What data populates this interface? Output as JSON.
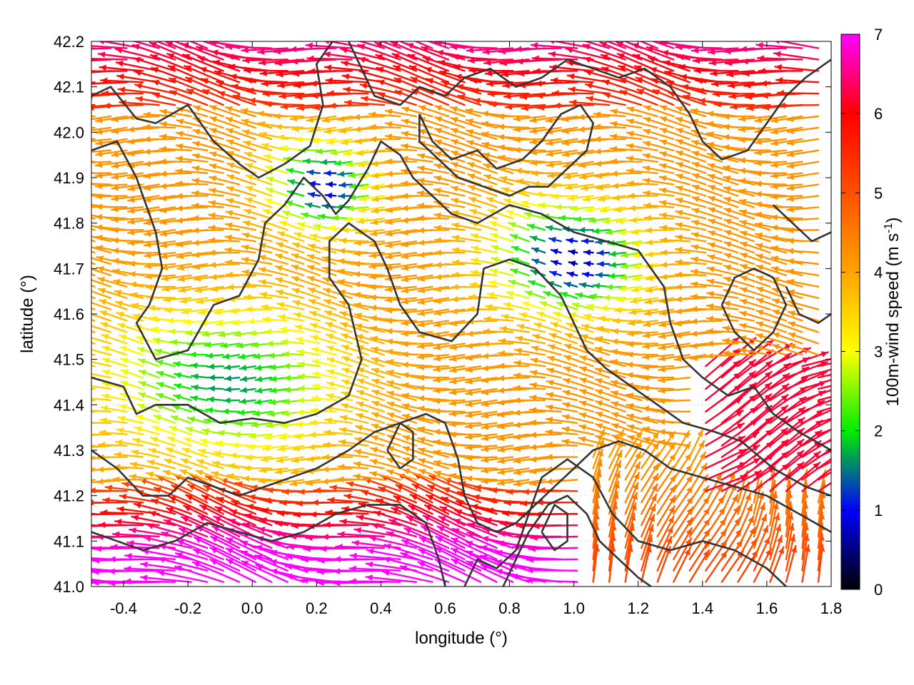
{
  "chart_data": {
    "type": "vector-field",
    "xlabel": "longitude (°)",
    "ylabel": "latitude (°)",
    "colorbar_label_main": "100m-wind speed (m s",
    "colorbar_label_exp": "-1",
    "colorbar_label_close": ")",
    "xlim": [
      -0.5,
      1.8
    ],
    "ylim": [
      41.0,
      42.2
    ],
    "x_ticks": [
      {
        "value": -0.4,
        "label": "-0.4"
      },
      {
        "value": -0.2,
        "label": "-0.2"
      },
      {
        "value": 0.0,
        "label": "0.0"
      },
      {
        "value": 0.2,
        "label": "0.2"
      },
      {
        "value": 0.4,
        "label": "0.4"
      },
      {
        "value": 0.6,
        "label": "0.6"
      },
      {
        "value": 0.8,
        "label": "0.8"
      },
      {
        "value": 1.0,
        "label": "1.0"
      },
      {
        "value": 1.2,
        "label": "1.2"
      },
      {
        "value": 1.4,
        "label": "1.4"
      },
      {
        "value": 1.6,
        "label": "1.6"
      },
      {
        "value": 1.8,
        "label": "1.8"
      }
    ],
    "y_ticks": [
      {
        "value": 41.0,
        "label": "41.0"
      },
      {
        "value": 41.1,
        "label": "41.1"
      },
      {
        "value": 41.2,
        "label": "41.2"
      },
      {
        "value": 41.3,
        "label": "41.3"
      },
      {
        "value": 41.4,
        "label": "41.4"
      },
      {
        "value": 41.5,
        "label": "41.5"
      },
      {
        "value": 41.6,
        "label": "41.6"
      },
      {
        "value": 41.7,
        "label": "41.7"
      },
      {
        "value": 41.8,
        "label": "41.8"
      },
      {
        "value": 41.9,
        "label": "41.9"
      },
      {
        "value": 42.0,
        "label": "42.0"
      },
      {
        "value": 42.1,
        "label": "42.1"
      },
      {
        "value": 42.2,
        "label": "42.2"
      }
    ],
    "colorbar_range": [
      0,
      7
    ],
    "colorbar_ticks": [
      {
        "value": 0,
        "label": "0"
      },
      {
        "value": 1,
        "label": "1"
      },
      {
        "value": 2,
        "label": "2"
      },
      {
        "value": 3,
        "label": "3"
      },
      {
        "value": 4,
        "label": "4"
      },
      {
        "value": 5,
        "label": "5"
      },
      {
        "value": 6,
        "label": "6"
      },
      {
        "value": 7,
        "label": "7"
      }
    ],
    "colormap": [
      {
        "value": 0,
        "color": "#000000"
      },
      {
        "value": 1,
        "color": "#0000ff"
      },
      {
        "value": 2,
        "color": "#00ee00"
      },
      {
        "value": 3,
        "color": "#ffff00"
      },
      {
        "value": 4,
        "color": "#ffa500"
      },
      {
        "value": 5,
        "color": "#ff5000"
      },
      {
        "value": 6,
        "color": "#ff0000"
      },
      {
        "value": 7,
        "color": "#ff00ff"
      }
    ],
    "grid": true,
    "contour_color": "#333333",
    "contours": [
      [
        [
          -0.5,
          42.08
        ],
        [
          -0.44,
          42.1
        ],
        [
          -0.36,
          42.03
        ],
        [
          -0.3,
          42.02
        ],
        [
          -0.2,
          42.06
        ],
        [
          -0.12,
          41.98
        ],
        [
          -0.04,
          41.93
        ],
        [
          0.02,
          41.9
        ],
        [
          0.1,
          41.93
        ],
        [
          0.18,
          41.97
        ],
        [
          0.22,
          42.06
        ],
        [
          0.2,
          42.15
        ],
        [
          0.25,
          42.2
        ]
      ],
      [
        [
          -0.5,
          41.96
        ],
        [
          -0.42,
          41.98
        ],
        [
          -0.36,
          41.9
        ],
        [
          -0.3,
          41.78
        ],
        [
          -0.28,
          41.7
        ],
        [
          -0.32,
          41.62
        ],
        [
          -0.36,
          41.58
        ],
        [
          -0.3,
          41.5
        ],
        [
          -0.2,
          41.52
        ],
        [
          -0.12,
          41.62
        ],
        [
          -0.04,
          41.64
        ],
        [
          0.02,
          41.72
        ],
        [
          0.04,
          41.8
        ],
        [
          0.1,
          41.84
        ],
        [
          0.16,
          41.9
        ],
        [
          0.22,
          41.86
        ],
        [
          0.26,
          41.82
        ],
        [
          0.3,
          41.85
        ],
        [
          0.36,
          41.92
        ],
        [
          0.4,
          41.98
        ],
        [
          0.46,
          41.95
        ],
        [
          0.5,
          41.9
        ],
        [
          0.56,
          41.86
        ],
        [
          0.62,
          41.82
        ],
        [
          0.7,
          41.8
        ],
        [
          0.8,
          41.84
        ],
        [
          0.9,
          41.82
        ],
        [
          1.0,
          41.78
        ],
        [
          1.1,
          41.76
        ],
        [
          1.2,
          41.74
        ],
        [
          1.28,
          41.66
        ],
        [
          1.3,
          41.58
        ],
        [
          1.34,
          41.5
        ],
        [
          1.4,
          41.46
        ],
        [
          1.48,
          41.42
        ],
        [
          1.56,
          41.44
        ],
        [
          1.62,
          41.38
        ],
        [
          1.7,
          41.34
        ],
        [
          1.8,
          41.3
        ]
      ],
      [
        [
          -0.5,
          41.46
        ],
        [
          -0.4,
          41.44
        ],
        [
          -0.36,
          41.38
        ],
        [
          -0.3,
          41.4
        ],
        [
          -0.2,
          41.4
        ],
        [
          -0.1,
          41.36
        ],
        [
          0.0,
          41.37
        ],
        [
          0.1,
          41.36
        ],
        [
          0.2,
          41.38
        ],
        [
          0.3,
          41.42
        ],
        [
          0.34,
          41.5
        ],
        [
          0.3,
          41.62
        ],
        [
          0.24,
          41.68
        ],
        [
          0.24,
          41.76
        ],
        [
          0.3,
          41.8
        ],
        [
          0.38,
          41.76
        ],
        [
          0.42,
          41.7
        ],
        [
          0.46,
          41.62
        ],
        [
          0.52,
          41.56
        ],
        [
          0.62,
          41.54
        ],
        [
          0.7,
          41.6
        ],
        [
          0.72,
          41.7
        ],
        [
          0.8,
          41.72
        ],
        [
          0.88,
          41.7
        ],
        [
          0.96,
          41.64
        ],
        [
          1.0,
          41.58
        ],
        [
          1.04,
          41.52
        ],
        [
          1.1,
          41.48
        ],
        [
          1.18,
          41.44
        ],
        [
          1.26,
          41.4
        ],
        [
          1.34,
          41.36
        ],
        [
          1.44,
          41.34
        ],
        [
          1.52,
          41.32
        ],
        [
          1.62,
          41.26
        ],
        [
          1.72,
          41.22
        ],
        [
          1.8,
          41.2
        ]
      ],
      [
        [
          -0.5,
          41.3
        ],
        [
          -0.42,
          41.26
        ],
        [
          -0.34,
          41.2
        ],
        [
          -0.26,
          41.2
        ],
        [
          -0.2,
          41.24
        ],
        [
          -0.12,
          41.22
        ],
        [
          -0.04,
          41.2
        ],
        [
          0.04,
          41.22
        ],
        [
          0.12,
          41.24
        ],
        [
          0.2,
          41.26
        ],
        [
          0.3,
          41.3
        ],
        [
          0.38,
          41.34
        ],
        [
          0.46,
          41.36
        ],
        [
          0.54,
          41.38
        ],
        [
          0.6,
          41.36
        ],
        [
          0.64,
          41.28
        ],
        [
          0.66,
          41.2
        ],
        [
          0.7,
          41.14
        ],
        [
          0.76,
          41.12
        ],
        [
          0.82,
          41.14
        ],
        [
          0.88,
          41.18
        ],
        [
          0.94,
          41.22
        ],
        [
          1.0,
          41.26
        ],
        [
          1.06,
          41.3
        ],
        [
          1.14,
          41.32
        ],
        [
          1.22,
          41.3
        ],
        [
          1.3,
          41.26
        ],
        [
          1.4,
          41.24
        ],
        [
          1.5,
          41.22
        ],
        [
          1.6,
          41.2
        ],
        [
          1.7,
          41.16
        ],
        [
          1.8,
          41.12
        ]
      ],
      [
        [
          -0.5,
          41.12
        ],
        [
          -0.42,
          41.1
        ],
        [
          -0.34,
          41.08
        ],
        [
          -0.24,
          41.1
        ],
        [
          -0.14,
          41.14
        ],
        [
          -0.04,
          41.12
        ],
        [
          0.06,
          41.1
        ],
        [
          0.16,
          41.12
        ],
        [
          0.26,
          41.16
        ],
        [
          0.36,
          41.18
        ],
        [
          0.46,
          41.18
        ],
        [
          0.54,
          41.14
        ],
        [
          0.58,
          41.06
        ],
        [
          0.6,
          41.0
        ]
      ],
      [
        [
          0.66,
          41.0
        ],
        [
          0.7,
          41.06
        ],
        [
          0.76,
          41.04
        ],
        [
          0.82,
          41.08
        ],
        [
          0.86,
          41.16
        ],
        [
          0.9,
          41.24
        ],
        [
          0.98,
          41.28
        ],
        [
          1.06,
          41.24
        ],
        [
          1.12,
          41.16
        ],
        [
          1.2,
          41.1
        ],
        [
          1.3,
          41.08
        ],
        [
          1.4,
          41.1
        ],
        [
          1.5,
          41.08
        ],
        [
          1.6,
          41.04
        ],
        [
          1.66,
          41.0
        ]
      ],
      [
        [
          0.78,
          41.0
        ],
        [
          0.82,
          41.06
        ],
        [
          0.86,
          41.12
        ],
        [
          0.92,
          41.18
        ],
        [
          0.98,
          41.2
        ],
        [
          1.04,
          41.16
        ],
        [
          1.08,
          41.1
        ],
        [
          1.14,
          41.06
        ],
        [
          1.2,
          41.02
        ],
        [
          1.24,
          41.0
        ]
      ],
      [
        [
          0.3,
          42.2
        ],
        [
          0.34,
          42.14
        ],
        [
          0.38,
          42.08
        ],
        [
          0.46,
          42.06
        ],
        [
          0.52,
          42.1
        ],
        [
          0.6,
          42.08
        ],
        [
          0.66,
          42.12
        ],
        [
          0.74,
          42.14
        ],
        [
          0.82,
          42.1
        ],
        [
          0.9,
          42.12
        ],
        [
          0.98,
          42.16
        ],
        [
          1.06,
          42.14
        ],
        [
          1.14,
          42.12
        ],
        [
          1.22,
          42.14
        ],
        [
          1.3,
          42.1
        ],
        [
          1.36,
          42.04
        ],
        [
          1.4,
          41.98
        ],
        [
          1.46,
          41.94
        ],
        [
          1.54,
          41.96
        ],
        [
          1.6,
          42.02
        ],
        [
          1.66,
          42.08
        ],
        [
          1.72,
          42.12
        ],
        [
          1.8,
          42.16
        ]
      ],
      [
        [
          0.52,
          42.04
        ],
        [
          0.56,
          41.98
        ],
        [
          0.62,
          41.94
        ],
        [
          0.7,
          41.96
        ],
        [
          0.76,
          41.92
        ],
        [
          0.84,
          41.94
        ],
        [
          0.9,
          41.98
        ],
        [
          0.96,
          42.04
        ],
        [
          1.02,
          42.06
        ],
        [
          1.06,
          42.02
        ],
        [
          1.04,
          41.96
        ],
        [
          0.98,
          41.92
        ],
        [
          0.92,
          41.88
        ],
        [
          0.86,
          41.88
        ],
        [
          0.8,
          41.86
        ],
        [
          0.72,
          41.88
        ],
        [
          0.64,
          41.9
        ],
        [
          0.58,
          41.94
        ],
        [
          0.52,
          41.98
        ],
        [
          0.52,
          42.04
        ]
      ],
      [
        [
          1.46,
          41.62
        ],
        [
          1.5,
          41.56
        ],
        [
          1.56,
          41.52
        ],
        [
          1.62,
          41.56
        ],
        [
          1.66,
          41.62
        ],
        [
          1.62,
          41.68
        ],
        [
          1.56,
          41.7
        ],
        [
          1.5,
          41.68
        ],
        [
          1.46,
          41.62
        ]
      ],
      [
        [
          1.66,
          41.66
        ],
        [
          1.7,
          41.6
        ],
        [
          1.76,
          41.58
        ],
        [
          1.8,
          41.6
        ]
      ],
      [
        [
          1.62,
          41.84
        ],
        [
          1.68,
          41.8
        ],
        [
          1.74,
          41.76
        ],
        [
          1.8,
          41.78
        ]
      ],
      [
        [
          0.42,
          41.3
        ],
        [
          0.46,
          41.26
        ],
        [
          0.5,
          41.28
        ],
        [
          0.5,
          41.34
        ],
        [
          0.46,
          41.36
        ],
        [
          0.42,
          41.3
        ]
      ],
      [
        [
          0.9,
          41.12
        ],
        [
          0.94,
          41.08
        ],
        [
          0.98,
          41.1
        ],
        [
          0.98,
          41.16
        ],
        [
          0.94,
          41.18
        ],
        [
          0.9,
          41.12
        ]
      ]
    ]
  }
}
